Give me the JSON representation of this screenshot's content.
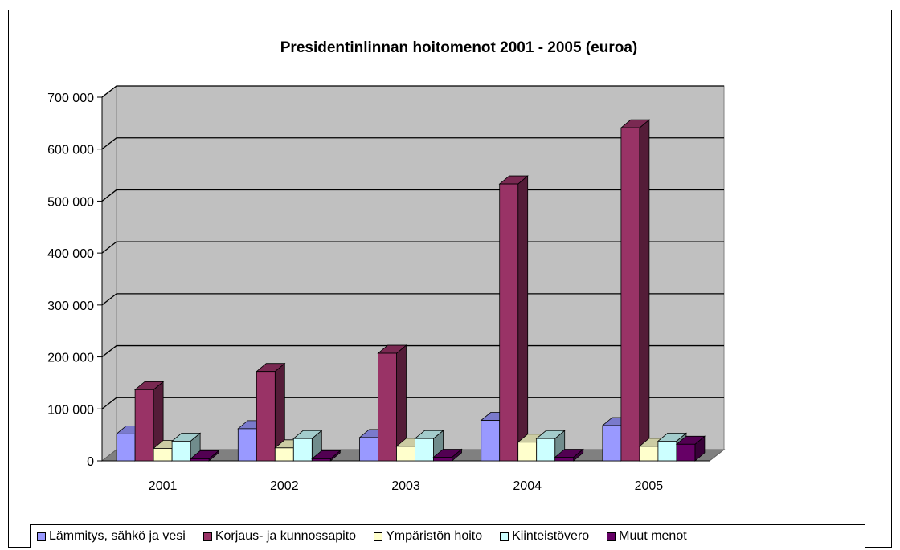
{
  "chart_data": {
    "type": "bar",
    "title": "Presidentinlinnan hoitomenot 2001 - 2005 (euroa)",
    "xlabel": "",
    "ylabel": "",
    "categories": [
      "2001",
      "2002",
      "2003",
      "2004",
      "2005"
    ],
    "ylim": [
      0,
      700000
    ],
    "yticks": [
      0,
      100000,
      200000,
      300000,
      400000,
      500000,
      600000,
      700000
    ],
    "ytick_labels": [
      "0",
      "100 000",
      "200 000",
      "300 000",
      "400 000",
      "500 000",
      "600 000",
      "700 000"
    ],
    "grid": true,
    "legend_position": "bottom",
    "series": [
      {
        "name": "Lämmitys, sähkö ja vesi",
        "color": "#9999ff",
        "values": [
          52000,
          62000,
          45000,
          78000,
          68000
        ]
      },
      {
        "name": "Korjaus- ja kunnossapito",
        "color": "#993366",
        "values": [
          137000,
          172000,
          207000,
          533000,
          641000
        ]
      },
      {
        "name": "Ympäristön hoito",
        "color": "#ffffcc",
        "values": [
          24000,
          25000,
          28000,
          36000,
          28000
        ]
      },
      {
        "name": "Kiinteistövero",
        "color": "#ccffff",
        "values": [
          38000,
          43000,
          43000,
          43000,
          38000
        ]
      },
      {
        "name": "Muut menot",
        "color": "#660066",
        "values": [
          4000,
          4000,
          7000,
          7000,
          32000
        ]
      }
    ]
  }
}
